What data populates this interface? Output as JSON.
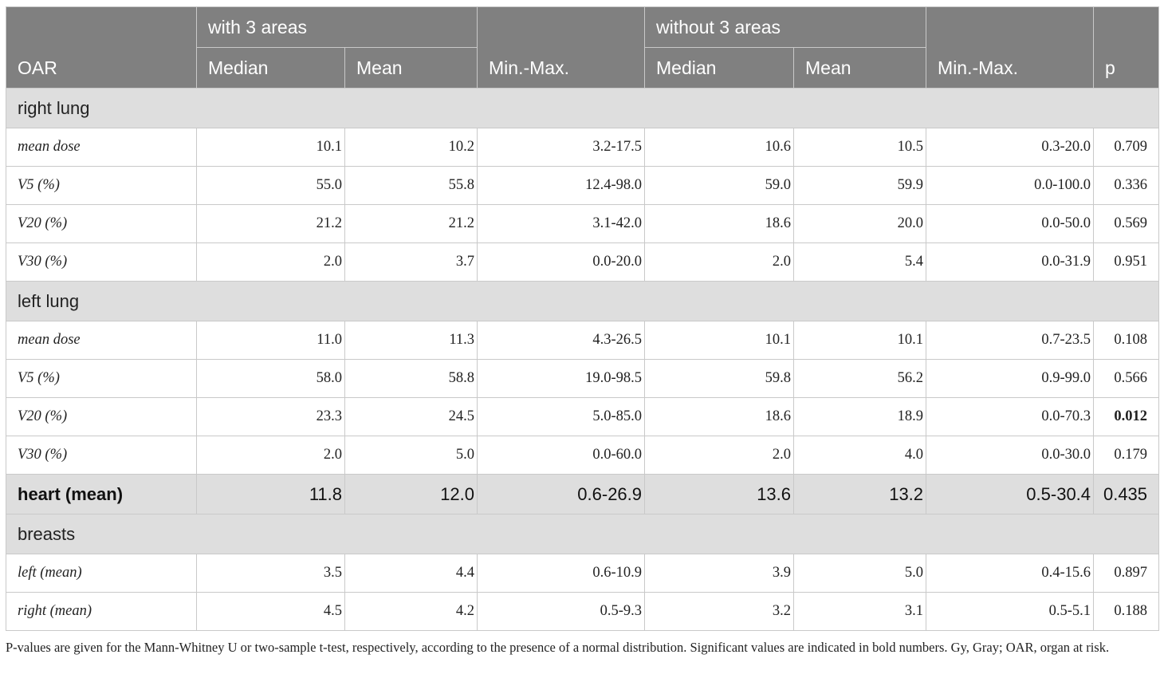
{
  "header": {
    "oar": "OAR",
    "group1": "with 3 areas",
    "group2": "without 3 areas",
    "median": "Median",
    "mean": "Mean",
    "minmax": "Min.-Max.",
    "p": "p"
  },
  "sections": {
    "right_lung": "right lung",
    "left_lung": "left lung",
    "breasts": "breasts"
  },
  "rows": {
    "rl_mean": [
      "mean dose",
      "10.1",
      "10.2",
      "3.2-17.5",
      "10.6",
      "10.5",
      "0.3-20.0",
      "0.709"
    ],
    "rl_v5": [
      "V5 (%)",
      "55.0",
      "55.8",
      "12.4-98.0",
      "59.0",
      "59.9",
      "0.0-100.0",
      "0.336"
    ],
    "rl_v20": [
      "V20 (%)",
      "21.2",
      "21.2",
      "3.1-42.0",
      "18.6",
      "20.0",
      "0.0-50.0",
      "0.569"
    ],
    "rl_v30": [
      "V30 (%)",
      "2.0",
      "3.7",
      "0.0-20.0",
      "2.0",
      "5.4",
      "0.0-31.9",
      "0.951"
    ],
    "ll_mean": [
      "mean dose",
      "11.0",
      "11.3",
      "4.3-26.5",
      "10.1",
      "10.1",
      "0.7-23.5",
      "0.108"
    ],
    "ll_v5": [
      "V5 (%)",
      "58.0",
      "58.8",
      "19.0-98.5",
      "59.8",
      "56.2",
      "0.9-99.0",
      "0.566"
    ],
    "ll_v20": [
      "V20 (%)",
      "23.3",
      "24.5",
      "5.0-85.0",
      "18.6",
      "18.9",
      "0.0-70.3",
      "0.012"
    ],
    "ll_v30": [
      "V30 (%)",
      "2.0",
      "5.0",
      "0.0-60.0",
      "2.0",
      "4.0",
      "0.0-30.0",
      "0.179"
    ],
    "heart": [
      "heart (mean)",
      "11.8",
      "12.0",
      "0.6-26.9",
      "13.6",
      "13.2",
      "0.5-30.4",
      "0.435"
    ],
    "br_left": [
      "left (mean)",
      "3.5",
      "4.4",
      "0.6-10.9",
      "3.9",
      "5.0",
      "0.4-15.6",
      "0.897"
    ],
    "br_right": [
      "right (mean)",
      "4.5",
      "4.2",
      "0.5-9.3",
      "3.2",
      "3.1",
      "0.5-5.1",
      "0.188"
    ]
  },
  "footnote": "P-values are given for the Mann-Whitney U or two-sample t-test, respectively, according to the presence of a normal distribution. Significant values are indicated in bold numbers. Gy, Gray; OAR, organ at risk."
}
